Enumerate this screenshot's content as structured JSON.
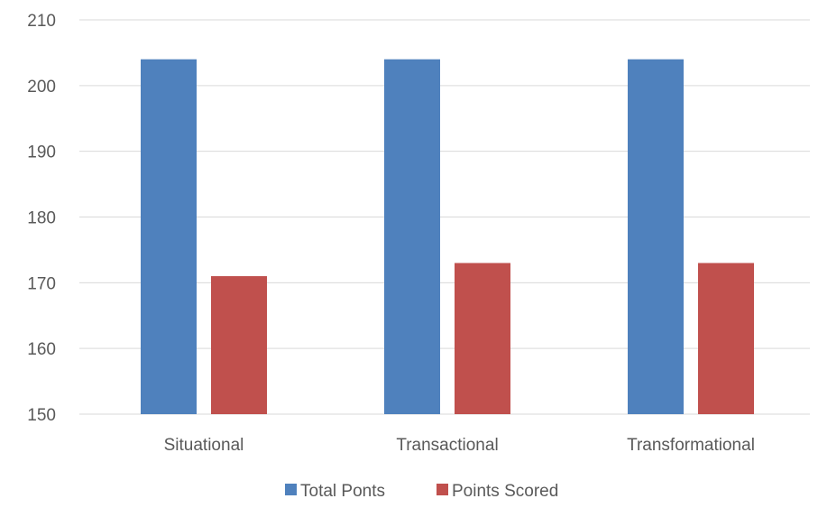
{
  "chart_data": {
    "type": "bar",
    "categories": [
      "Situational",
      "Transactional",
      "Transformational"
    ],
    "series": [
      {
        "name": "Total Ponts",
        "values": [
          204,
          204,
          204
        ],
        "color": "#4F81BD"
      },
      {
        "name": "Points Scored",
        "values": [
          171,
          173,
          173
        ],
        "color": "#C0504D"
      }
    ],
    "ylim": [
      150,
      210
    ],
    "yticks": [
      150,
      160,
      170,
      180,
      190,
      200,
      210
    ],
    "grid": true,
    "legend_position": "bottom"
  }
}
